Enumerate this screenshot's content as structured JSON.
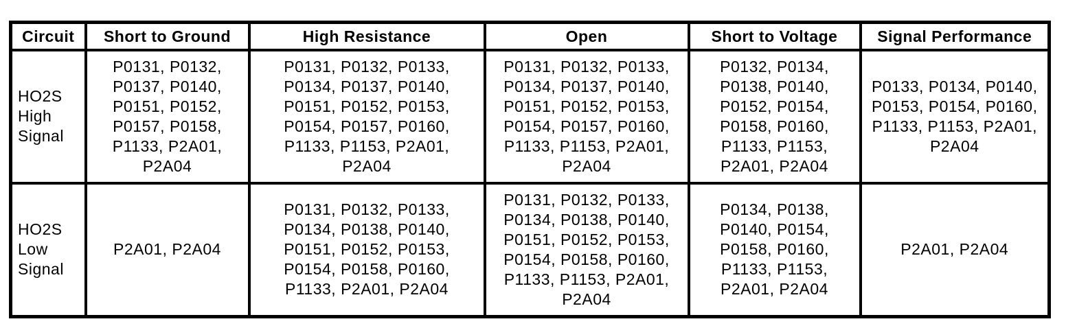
{
  "page": {
    "background_color": "#ffffff",
    "border_color": "#000000",
    "text_color": "#000000"
  },
  "table": {
    "headers": [
      "Circuit",
      "Short to Ground",
      "High Resistance",
      "Open",
      "Short to Voltage",
      "Signal Performance"
    ],
    "rows": [
      {
        "circuit": "HO2S\nHigh\nSignal",
        "short_to_ground": "P0131, P0132,\nP0137, P0140,\nP0151, P0152,\nP0157, P0158,\nP1133, P2A01,\nP2A04",
        "high_resistance": "P0131, P0132, P0133,\nP0134, P0137, P0140,\nP0151, P0152, P0153,\nP0154, P0157, P0160,\nP1133, P1153, P2A01,\nP2A04",
        "open": "P0131, P0132, P0133,\nP0134, P0137, P0140,\nP0151, P0152, P0153,\nP0154, P0157, P0160,\nP1133, P1153, P2A01,\nP2A04",
        "short_to_voltage": "P0132, P0134,\nP0138, P0140,\nP0152, P0154,\nP0158, P0160,\nP1133, P1153,\nP2A01, P2A04",
        "signal_performance": "P0133, P0134, P0140,\nP0153, P0154, P0160,\nP1133, P1153, P2A01,\nP2A04"
      },
      {
        "circuit": "HO2S\nLow\nSignal",
        "short_to_ground": "P2A01, P2A04",
        "high_resistance": "P0131, P0132, P0133,\nP0134, P0138, P0140,\nP0151, P0152, P0153,\nP0154, P0158, P0160,\nP1133, P2A01, P2A04",
        "open": "P0131, P0132, P0133,\nP0134, P0138, P0140,\nP0151, P0152, P0153,\nP0154, P0158, P0160,\nP1133, P1153, P2A01,\nP2A04",
        "short_to_voltage": "P0134, P0138,\nP0140, P0154,\nP0158, P0160,\nP1133, P1153,\nP2A01, P2A04",
        "signal_performance": "P2A01, P2A04"
      }
    ]
  }
}
